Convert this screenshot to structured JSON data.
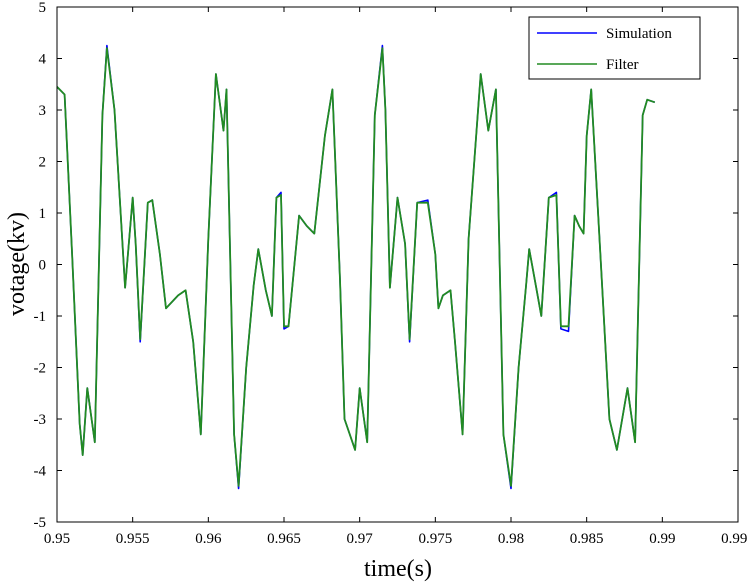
{
  "chart_data": {
    "type": "line",
    "title": "",
    "xlabel": "time(s)",
    "ylabel": "votage(kv)",
    "xlim": [
      0.95,
      0.995
    ],
    "ylim": [
      -5,
      5
    ],
    "xticks": [
      0.95,
      0.955,
      0.96,
      0.965,
      0.97,
      0.975,
      0.98,
      0.985,
      0.99,
      0.995
    ],
    "xtick_labels": [
      "0.95",
      "0.955",
      "0.96",
      "0.965",
      "0.97",
      "0.975",
      "0.98",
      "0.985",
      "0.99",
      "0.995"
    ],
    "yticks": [
      -5,
      -4,
      -3,
      -2,
      -1,
      0,
      1,
      2,
      3,
      4,
      5
    ],
    "ytick_labels": [
      "-5",
      "-4",
      "-3",
      "-2",
      "-1",
      "0",
      "1",
      "2",
      "3",
      "4",
      "5"
    ],
    "grid": false,
    "legend_position": "top-right",
    "series": [
      {
        "name": "Simulation",
        "color": "#0000ff",
        "x": [
          0.95,
          0.9505,
          0.951,
          0.9515,
          0.9517,
          0.952,
          0.9525,
          0.953,
          0.9533,
          0.9538,
          0.9545,
          0.955,
          0.9552,
          0.9555,
          0.956,
          0.9563,
          0.9568,
          0.9572,
          0.958,
          0.9585,
          0.959,
          0.9595,
          0.96,
          0.9605,
          0.961,
          0.9612,
          0.9617,
          0.962,
          0.9625,
          0.963,
          0.9633,
          0.9638,
          0.9642,
          0.9645,
          0.9648,
          0.965,
          0.9653,
          0.966,
          0.9665,
          0.967,
          0.9677,
          0.9682,
          0.9687,
          0.969,
          0.9697,
          0.97,
          0.9705,
          0.971,
          0.9715,
          0.9717,
          0.972,
          0.9725,
          0.973,
          0.9733,
          0.9738,
          0.9745,
          0.975,
          0.9752,
          0.9755,
          0.976,
          0.9763,
          0.9768,
          0.9772,
          0.978,
          0.9785,
          0.979,
          0.9795,
          0.98,
          0.9805,
          0.981,
          0.9812,
          0.9817,
          0.982,
          0.9825,
          0.983,
          0.9833,
          0.9838,
          0.9842,
          0.9845,
          0.9848,
          0.985,
          0.9853,
          0.986,
          0.9865,
          0.987,
          0.9877,
          0.9882,
          0.9887,
          0.989,
          0.9895
        ],
        "y": [
          3.45,
          3.3,
          0.2,
          -3.1,
          -3.7,
          -2.4,
          -3.45,
          2.9,
          4.25,
          3.0,
          -0.45,
          1.3,
          0.4,
          -1.5,
          1.2,
          1.25,
          0.2,
          -0.85,
          -0.6,
          -0.5,
          -1.5,
          -3.3,
          0.5,
          3.7,
          2.6,
          3.4,
          -3.3,
          -4.35,
          -2.0,
          -0.4,
          0.3,
          -0.5,
          -1.0,
          1.3,
          1.4,
          -1.25,
          -1.2,
          0.95,
          0.75,
          0.6,
          2.5,
          3.4,
          -0.3,
          -3.0,
          -3.6,
          -2.4,
          -3.45,
          2.9,
          4.25,
          3.0,
          -0.45,
          1.3,
          0.4,
          -1.5,
          1.2,
          1.25,
          0.2,
          -0.85,
          -0.6,
          -0.5,
          -1.5,
          -3.3,
          0.5,
          3.7,
          2.6,
          3.4,
          -3.3,
          -4.35,
          -2.0,
          -0.4,
          0.3,
          -0.5,
          -1.0,
          1.3,
          1.4,
          -1.25,
          -1.3,
          0.95,
          0.75,
          0.6,
          2.5,
          3.4,
          -0.3,
          -3.0,
          -3.6,
          -2.4,
          -3.45,
          2.9,
          3.2,
          3.15
        ]
      },
      {
        "name": "Filter",
        "color": "#228b22",
        "x": [
          0.95,
          0.9505,
          0.951,
          0.9515,
          0.9517,
          0.952,
          0.9525,
          0.953,
          0.9533,
          0.9538,
          0.9545,
          0.955,
          0.9552,
          0.9555,
          0.956,
          0.9563,
          0.9568,
          0.9572,
          0.958,
          0.9585,
          0.959,
          0.9595,
          0.96,
          0.9605,
          0.961,
          0.9612,
          0.9617,
          0.962,
          0.9625,
          0.963,
          0.9633,
          0.9638,
          0.9642,
          0.9645,
          0.9648,
          0.965,
          0.9653,
          0.966,
          0.9665,
          0.967,
          0.9677,
          0.9682,
          0.9687,
          0.969,
          0.9697,
          0.97,
          0.9705,
          0.971,
          0.9715,
          0.9717,
          0.972,
          0.9725,
          0.973,
          0.9733,
          0.9738,
          0.9745,
          0.975,
          0.9752,
          0.9755,
          0.976,
          0.9763,
          0.9768,
          0.9772,
          0.978,
          0.9785,
          0.979,
          0.9795,
          0.98,
          0.9805,
          0.981,
          0.9812,
          0.9817,
          0.982,
          0.9825,
          0.983,
          0.9833,
          0.9838,
          0.9842,
          0.9845,
          0.9848,
          0.985,
          0.9853,
          0.986,
          0.9865,
          0.987,
          0.9877,
          0.9882,
          0.9887,
          0.989,
          0.9895
        ],
        "y": [
          3.45,
          3.3,
          0.2,
          -3.1,
          -3.7,
          -2.4,
          -3.45,
          2.9,
          4.2,
          3.0,
          -0.45,
          1.3,
          0.4,
          -1.45,
          1.2,
          1.25,
          0.2,
          -0.85,
          -0.6,
          -0.5,
          -1.5,
          -3.3,
          0.5,
          3.7,
          2.6,
          3.4,
          -3.3,
          -4.3,
          -2.0,
          -0.4,
          0.3,
          -0.5,
          -1.0,
          1.3,
          1.35,
          -1.2,
          -1.2,
          0.95,
          0.75,
          0.6,
          2.5,
          3.4,
          -0.3,
          -3.0,
          -3.6,
          -2.4,
          -3.45,
          2.9,
          4.2,
          3.0,
          -0.45,
          1.3,
          0.4,
          -1.45,
          1.2,
          1.2,
          0.2,
          -0.85,
          -0.6,
          -0.5,
          -1.5,
          -3.3,
          0.5,
          3.7,
          2.6,
          3.4,
          -3.3,
          -4.3,
          -2.0,
          -0.4,
          0.3,
          -0.5,
          -1.0,
          1.3,
          1.35,
          -1.2,
          -1.2,
          0.95,
          0.75,
          0.6,
          2.5,
          3.4,
          -0.3,
          -3.0,
          -3.6,
          -2.4,
          -3.45,
          2.9,
          3.2,
          3.15
        ]
      }
    ]
  }
}
